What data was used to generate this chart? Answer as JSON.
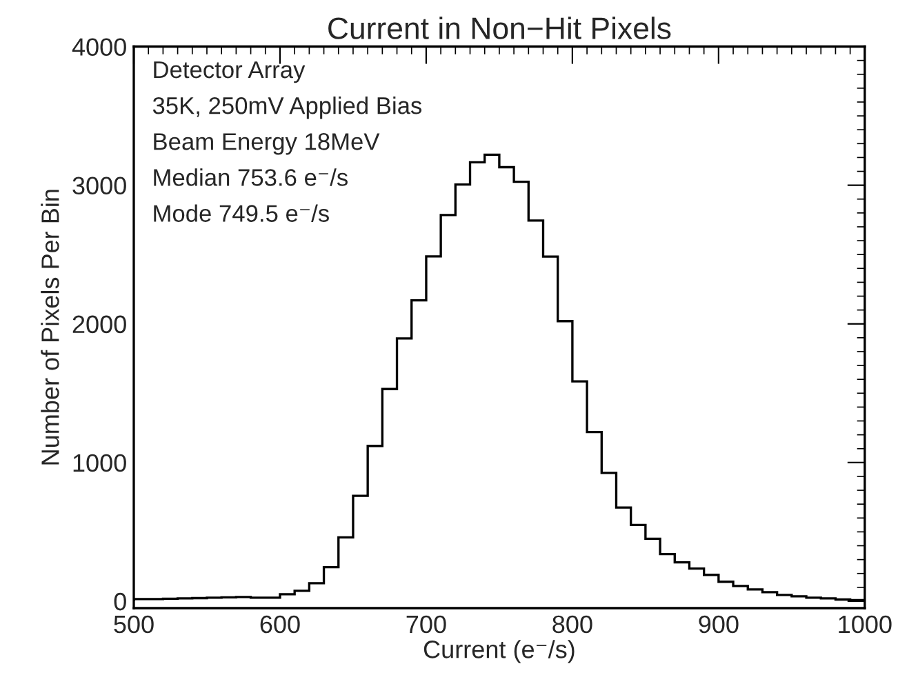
{
  "chart_data": {
    "type": "histogram",
    "title": "Current in Non−Hit Pixels",
    "xlabel": "Current (e⁻/s)",
    "ylabel": "Number of Pixels Per Bin",
    "bins": [
      500,
      510,
      520,
      530,
      540,
      550,
      560,
      570,
      580,
      590,
      600,
      610,
      620,
      630,
      640,
      650,
      660,
      670,
      680,
      690,
      700,
      710,
      720,
      730,
      740,
      750,
      760,
      770,
      780,
      790,
      800,
      810,
      820,
      830,
      840,
      850,
      860,
      870,
      880,
      890,
      900,
      910,
      920,
      930,
      940,
      950,
      960,
      970,
      980,
      990,
      1000
    ],
    "values": [
      15,
      15,
      18,
      20,
      22,
      25,
      28,
      30,
      25,
      25,
      50,
      75,
      130,
      245,
      460,
      760,
      1120,
      1530,
      1895,
      2170,
      2487,
      2785,
      3005,
      3165,
      3220,
      3130,
      3025,
      2745,
      2485,
      2020,
      1585,
      1220,
      925,
      675,
      550,
      450,
      340,
      280,
      235,
      190,
      140,
      110,
      85,
      65,
      45,
      35,
      25,
      20,
      12,
      8
    ],
    "color": "#000000",
    "xlim": [
      500,
      1000
    ],
    "xticks": [
      500,
      600,
      700,
      800,
      900,
      1000
    ],
    "ylim": [
      -50,
      4000
    ],
    "yticks": [
      0,
      1000,
      2000,
      3000,
      4000
    ],
    "grid": false,
    "annotations": [
      "Detector Array",
      "35K, 250mV Applied Bias",
      "Beam Energy 18MeV",
      "Median 753.6 e⁻/s",
      "Mode 749.5 e⁻/s"
    ]
  }
}
